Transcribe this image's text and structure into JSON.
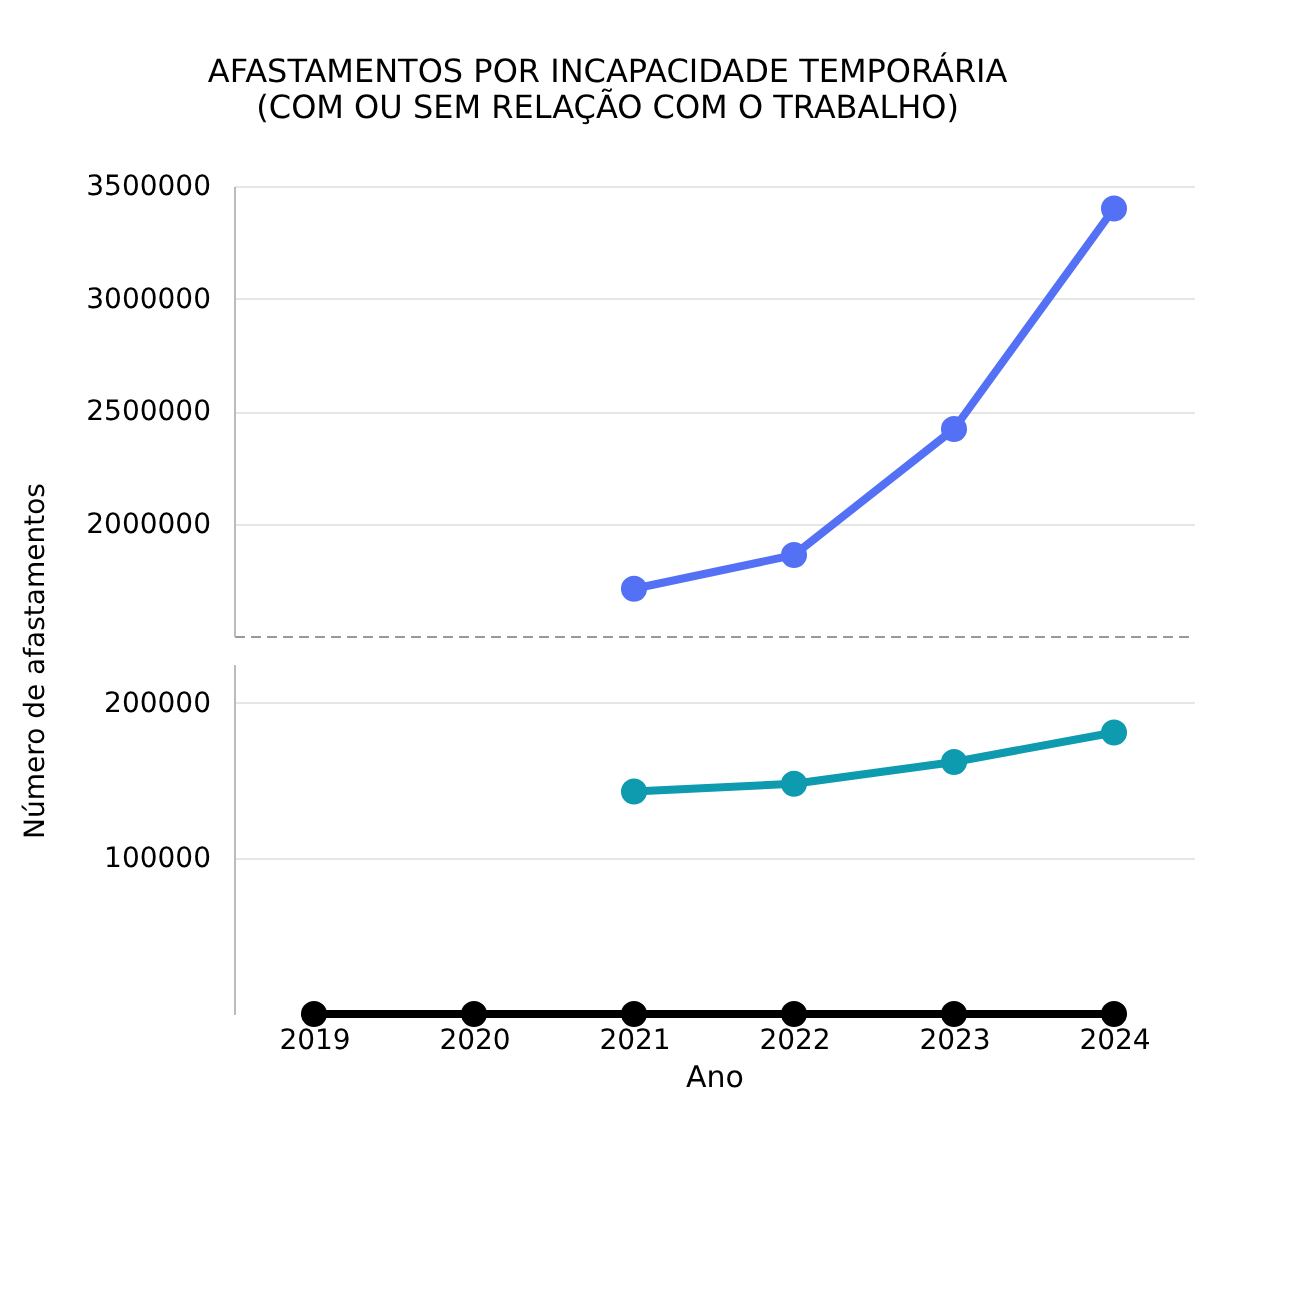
{
  "chart_data": [
    {
      "type": "line",
      "title": [
        "AFASTAMENTOS POR INCAPACIDADE TEMPORÁRIA",
        "(COM OU SEM RELAÇÃO COM O TRABALHO)"
      ],
      "ylabel": "Número de afastamentos",
      "categories": [
        "2019",
        "2020",
        "2021",
        "2022",
        "2023",
        "2024"
      ],
      "ylim": [
        1500000,
        3500000
      ],
      "yticks": [
        2000000,
        2500000,
        3000000,
        3500000
      ],
      "grid": "y",
      "marker": "circle",
      "tick_labels": "y",
      "series": [
        {
          "color": "#5470f5",
          "values": [
            null,
            null,
            1710000,
            1860000,
            2420000,
            3400000
          ]
        }
      ]
    },
    {
      "type": "line",
      "xlabel": "Ano",
      "categories": [
        "2019",
        "2020",
        "2021",
        "2022",
        "2023",
        "2024"
      ],
      "ylim": [
        0,
        225000
      ],
      "yticks": [
        100000,
        200000
      ],
      "grid": "y",
      "marker": "circle",
      "series": [
        {
          "color": "#0e9bb0",
          "values": [
            null,
            null,
            143000,
            148000,
            162000,
            181000
          ]
        },
        {
          "color": "#000000",
          "values": [
            0,
            0,
            0,
            0,
            0,
            0
          ]
        }
      ]
    }
  ]
}
